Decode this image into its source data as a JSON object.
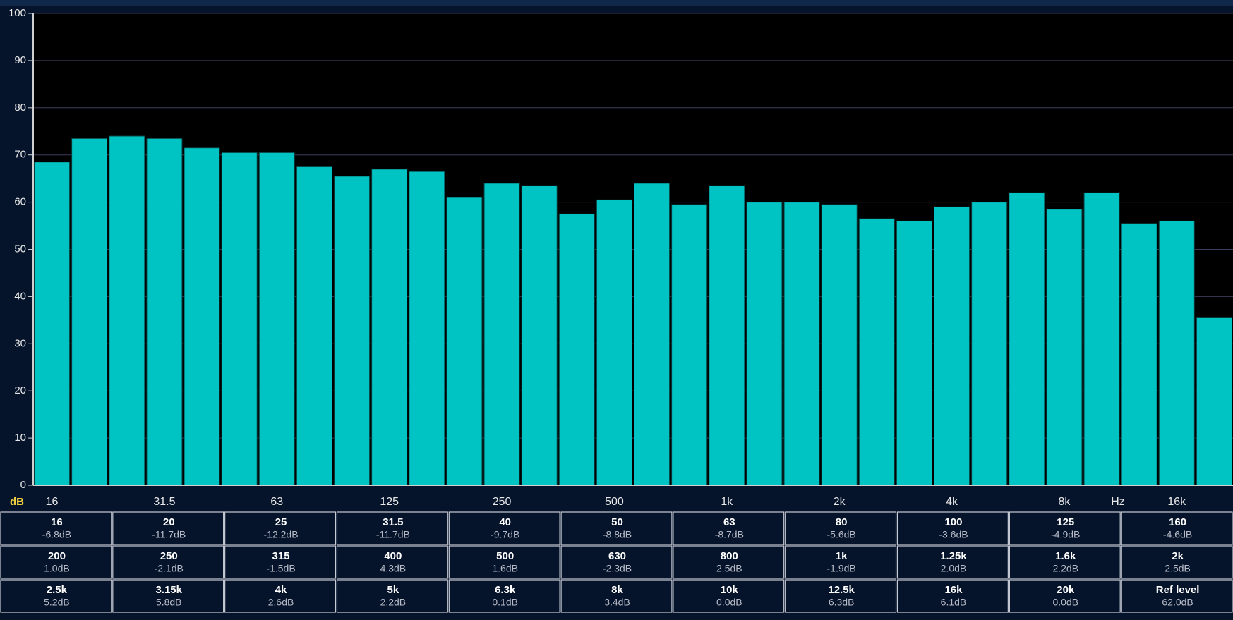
{
  "chart_data": {
    "type": "bar",
    "categories": [
      "16",
      null,
      null,
      "31.5",
      null,
      null,
      "63",
      null,
      null,
      "125",
      null,
      null,
      "250",
      null,
      null,
      "500",
      null,
      null,
      "1k",
      null,
      null,
      "2k",
      null,
      null,
      "4k",
      null,
      null,
      "8k",
      null,
      null,
      "16k",
      null
    ],
    "values": [
      68.5,
      73.5,
      74,
      73.5,
      71.5,
      70.5,
      70.5,
      67.5,
      65.5,
      67,
      66.5,
      61,
      64,
      63.5,
      57.5,
      60.5,
      64,
      59.5,
      63.5,
      60,
      60,
      59.5,
      56.5,
      56,
      59,
      60,
      62,
      58.5,
      62,
      55.5,
      56,
      35.5
    ],
    "color": "#00c4c4",
    "ylim": [
      0,
      100
    ],
    "yticks": [
      0,
      10,
      20,
      30,
      40,
      50,
      60,
      70,
      80,
      90,
      100
    ],
    "grid": true,
    "y_label": "dB",
    "x_label": "Hz"
  },
  "table": {
    "rows": [
      [
        {
          "name": "16",
          "value": "-6.8dB"
        },
        {
          "name": "20",
          "value": "-11.7dB"
        },
        {
          "name": "25",
          "value": "-12.2dB"
        },
        {
          "name": "31.5",
          "value": "-11.7dB"
        },
        {
          "name": "40",
          "value": "-9.7dB"
        },
        {
          "name": "50",
          "value": "-8.8dB"
        },
        {
          "name": "63",
          "value": "-8.7dB"
        },
        {
          "name": "80",
          "value": "-5.6dB"
        },
        {
          "name": "100",
          "value": "-3.6dB"
        },
        {
          "name": "125",
          "value": "-4.9dB"
        },
        {
          "name": "160",
          "value": "-4.6dB"
        }
      ],
      [
        {
          "name": "200",
          "value": "1.0dB"
        },
        {
          "name": "250",
          "value": "-2.1dB"
        },
        {
          "name": "315",
          "value": "-1.5dB"
        },
        {
          "name": "400",
          "value": "4.3dB"
        },
        {
          "name": "500",
          "value": "1.6dB"
        },
        {
          "name": "630",
          "value": "-2.3dB"
        },
        {
          "name": "800",
          "value": "2.5dB"
        },
        {
          "name": "1k",
          "value": "-1.9dB"
        },
        {
          "name": "1.25k",
          "value": "2.0dB"
        },
        {
          "name": "1.6k",
          "value": "2.2dB"
        },
        {
          "name": "2k",
          "value": "2.5dB"
        }
      ],
      [
        {
          "name": "2.5k",
          "value": "5.2dB"
        },
        {
          "name": "3.15k",
          "value": "5.8dB"
        },
        {
          "name": "4k",
          "value": "2.6dB"
        },
        {
          "name": "5k",
          "value": "2.2dB"
        },
        {
          "name": "6.3k",
          "value": "0.1dB"
        },
        {
          "name": "8k",
          "value": "3.4dB"
        },
        {
          "name": "10k",
          "value": "0.0dB"
        },
        {
          "name": "12.5k",
          "value": "6.3dB"
        },
        {
          "name": "16k",
          "value": "6.1dB"
        },
        {
          "name": "20k",
          "value": "0.0dB"
        },
        {
          "name": "Ref level",
          "value": "62.0dB"
        }
      ]
    ]
  }
}
